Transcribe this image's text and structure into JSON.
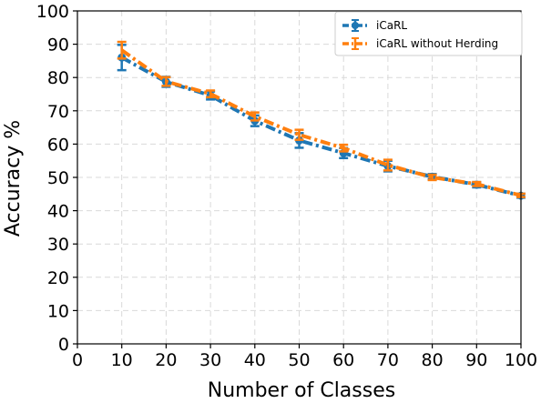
{
  "chart_data": {
    "type": "line",
    "title": "",
    "xlabel": "Number of Classes",
    "ylabel": "Accuracy %",
    "xlim": [
      0,
      100
    ],
    "ylim": [
      0,
      100
    ],
    "x_ticks": [
      "0",
      "10",
      "20",
      "30",
      "40",
      "50",
      "60",
      "70",
      "80",
      "90",
      "100"
    ],
    "y_ticks": [
      "0",
      "10",
      "20",
      "30",
      "40",
      "50",
      "60",
      "70",
      "80",
      "90",
      "100"
    ],
    "grid": true,
    "legend_position": "top-right",
    "x": [
      10,
      20,
      30,
      40,
      50,
      60,
      70,
      80,
      90,
      100
    ],
    "series": [
      {
        "name": "iCaRL",
        "color": "#1f77b4",
        "marker": "circle",
        "line_style": "dash-dot",
        "values": [
          86.0,
          78.7,
          74.6,
          67.0,
          61.1,
          57.3,
          53.4,
          50.2,
          47.8,
          44.5
        ],
        "errors": [
          3.8,
          1.5,
          1.2,
          1.6,
          2.2,
          1.5,
          1.6,
          0.8,
          0.8,
          0.6
        ]
      },
      {
        "name": "iCaRL without Herding",
        "color": "#ff7f0e",
        "marker": "none",
        "line_style": "dash-dot",
        "values": [
          88.2,
          78.8,
          75.1,
          68.3,
          62.8,
          58.8,
          53.7,
          50.0,
          48.0,
          44.6
        ],
        "errors": [
          2.5,
          1.3,
          1.0,
          1.2,
          1.5,
          1.0,
          1.6,
          0.8,
          0.6,
          0.5
        ]
      }
    ]
  }
}
